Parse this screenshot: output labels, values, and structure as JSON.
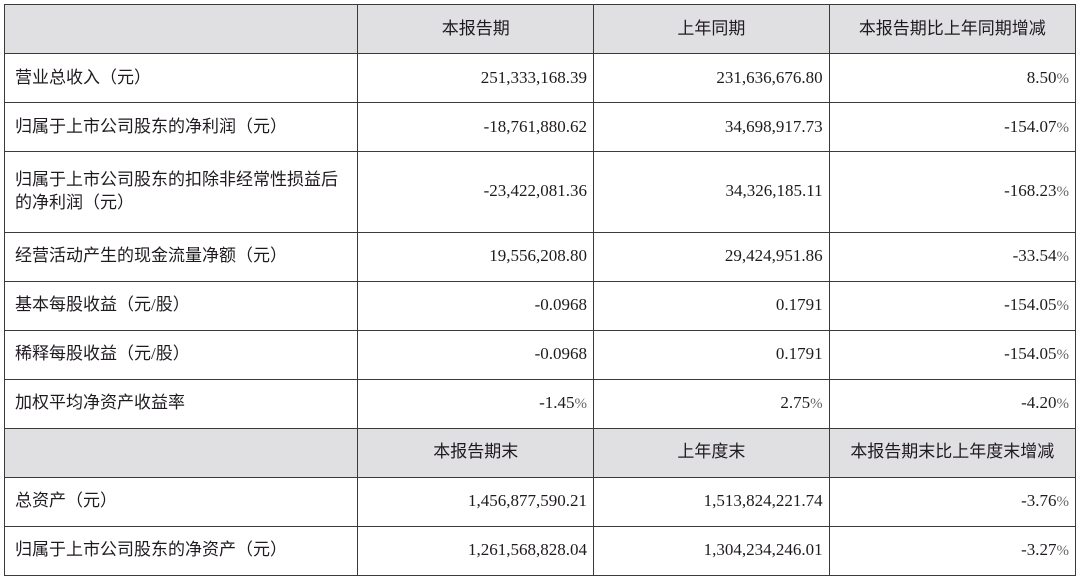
{
  "type": "table",
  "colors": {
    "header_bg": "#e0dfe2",
    "border": "#3a3a3a",
    "text": "#1f1a20",
    "pct_symbol": "#666666",
    "body_bg": "#ffffff"
  },
  "col_widths_pct": [
    33,
    22,
    22,
    23
  ],
  "font": {
    "family": "SimSun",
    "base_size": 17,
    "line_height": 1.35
  },
  "header1": {
    "c1": "",
    "c2": "本报告期",
    "c3": "上年同期",
    "c4": "本报告期比上年同期增减"
  },
  "rows1": [
    {
      "label": "营业总收入（元）",
      "a": "251,333,168.39",
      "b": "231,636,676.80",
      "c": "8.50",
      "pct": true
    },
    {
      "label": "归属于上市公司股东的净利润（元）",
      "a": "-18,761,880.62",
      "b": "34,698,917.73",
      "c": "-154.07",
      "pct": true
    },
    {
      "label": "归属于上市公司股东的扣除非经常性损益后的净利润（元）",
      "a": "-23,422,081.36",
      "b": "34,326,185.11",
      "c": "-168.23",
      "pct": true
    },
    {
      "label": "经营活动产生的现金流量净额（元）",
      "a": "19,556,208.80",
      "b": "29,424,951.86",
      "c": "-33.54",
      "pct": true
    },
    {
      "label": "基本每股收益（元/股）",
      "a": "-0.0968",
      "b": "0.1791",
      "c": "-154.05",
      "pct": true
    },
    {
      "label": "稀释每股收益（元/股）",
      "a": "-0.0968",
      "b": "0.1791",
      "c": "-154.05",
      "pct": true
    },
    {
      "label": "加权平均净资产收益率",
      "a": "-1.45",
      "apct": true,
      "b": "2.75",
      "bpct": true,
      "c": "-4.20",
      "pct": true
    }
  ],
  "header2": {
    "c1": "",
    "c2": "本报告期末",
    "c3": "上年度末",
    "c4": "本报告期末比上年度末增减"
  },
  "rows2": [
    {
      "label": "总资产（元）",
      "a": "1,456,877,590.21",
      "b": "1,513,824,221.74",
      "c": "-3.76",
      "pct": true
    },
    {
      "label": "归属于上市公司股东的净资产（元）",
      "a": "1,261,568,828.04",
      "b": "1,304,234,246.01",
      "c": "-3.27",
      "pct": true
    }
  ],
  "pct_symbol": "%"
}
